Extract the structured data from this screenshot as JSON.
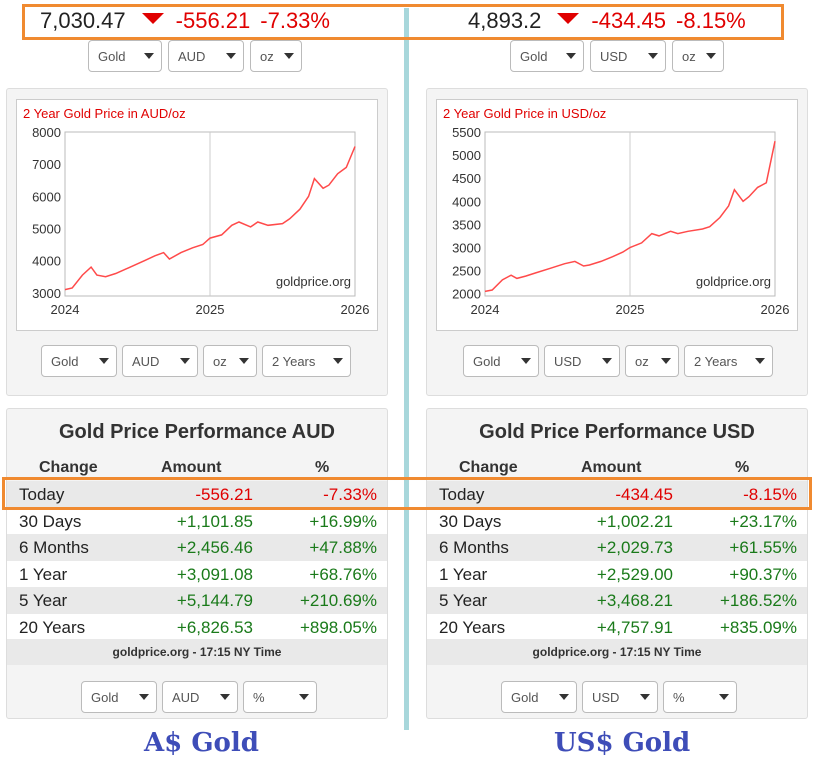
{
  "left": {
    "price": "7,030.47",
    "change": "-556.21",
    "change_pct": "-7.33%",
    "top_selects": [
      "Gold",
      "AUD",
      "oz"
    ],
    "chart": {
      "title": "2 Year Gold Price in AUD/oz",
      "watermark": "goldprice.org"
    },
    "chart_selects": [
      "Gold",
      "AUD",
      "oz",
      "2 Years"
    ],
    "perf_title": "Gold Price Performance AUD",
    "headers": {
      "change": "Change",
      "amount": "Amount",
      "pct": "%"
    },
    "rows": [
      {
        "label": "Today",
        "amount": "-556.21",
        "pct": "-7.33%"
      },
      {
        "label": "30 Days",
        "amount": "+1,101.85",
        "pct": "+16.99%"
      },
      {
        "label": "6 Months",
        "amount": "+2,456.46",
        "pct": "+47.88%"
      },
      {
        "label": "1 Year",
        "amount": "+3,091.08",
        "pct": "+68.76%"
      },
      {
        "label": "5 Year",
        "amount": "+5,144.79",
        "pct": "+210.69%"
      },
      {
        "label": "20 Years",
        "amount": "+6,826.53",
        "pct": "+898.05%"
      }
    ],
    "footer": "goldprice.org - 17:15 NY Time",
    "bottom_selects": [
      "Gold",
      "AUD",
      "%"
    ],
    "caption": "A$ Gold"
  },
  "right": {
    "price": "4,893.2",
    "change": "-434.45",
    "change_pct": "-8.15%",
    "top_selects": [
      "Gold",
      "USD",
      "oz"
    ],
    "chart": {
      "title": "2 Year Gold Price in USD/oz",
      "watermark": "goldprice.org"
    },
    "chart_selects": [
      "Gold",
      "USD",
      "oz",
      "2 Years"
    ],
    "perf_title": "Gold Price Performance USD",
    "headers": {
      "change": "Change",
      "amount": "Amount",
      "pct": "%"
    },
    "rows": [
      {
        "label": "Today",
        "amount": "-434.45",
        "pct": "-8.15%"
      },
      {
        "label": "30 Days",
        "amount": "+1,002.21",
        "pct": "+23.17%"
      },
      {
        "label": "6 Months",
        "amount": "+2,029.73",
        "pct": "+61.55%"
      },
      {
        "label": "1 Year",
        "amount": "+2,529.00",
        "pct": "+90.37%"
      },
      {
        "label": "5 Year",
        "amount": "+3,468.21",
        "pct": "+186.52%"
      },
      {
        "label": "20 Years",
        "amount": "+4,757.91",
        "pct": "+835.09%"
      }
    ],
    "footer": "goldprice.org - 17:15 NY Time",
    "bottom_selects": [
      "Gold",
      "USD",
      "%"
    ],
    "caption": "US$ Gold"
  },
  "colors": {
    "up": "#1a7a1a",
    "down": "#e00000",
    "highlight": "#f08a30",
    "caption": "#3e4db8",
    "divider": "#a8d7db",
    "chart_line": "#ff4a4a"
  },
  "chart_data": [
    {
      "type": "line",
      "title": "2 Year Gold Price in AUD/oz",
      "x_ticks": [
        "2024",
        "2025",
        "2026"
      ],
      "y_ticks": [
        "3000",
        "4000",
        "5000",
        "6000",
        "7000",
        "8000"
      ],
      "ylim": [
        2900,
        8000
      ],
      "xlim": [
        2024.0,
        2026.0
      ],
      "grid": true,
      "series": [
        {
          "x": [
            2024.0,
            2024.05,
            2024.12,
            2024.18,
            2024.22,
            2024.28,
            2024.35,
            2024.45,
            2024.55,
            2024.62,
            2024.68,
            2024.72,
            2024.8,
            2024.88,
            2024.95,
            2025.0,
            2025.08,
            2025.15,
            2025.2,
            2025.28,
            2025.33,
            2025.4,
            2025.5,
            2025.55,
            2025.62,
            2025.68,
            2025.72,
            2025.78,
            2025.82,
            2025.88,
            2025.94,
            2026.0
          ],
          "y": [
            3100,
            3150,
            3550,
            3800,
            3550,
            3500,
            3600,
            3800,
            4000,
            4150,
            4250,
            4050,
            4250,
            4400,
            4500,
            4700,
            4800,
            5100,
            5200,
            5050,
            5200,
            5100,
            5150,
            5300,
            5600,
            6000,
            6550,
            6250,
            6350,
            6700,
            6900,
            7550
          ]
        }
      ]
    },
    {
      "type": "line",
      "title": "2 Year Gold Price in USD/oz",
      "x_ticks": [
        "2024",
        "2025",
        "2026"
      ],
      "y_ticks": [
        "2000",
        "2500",
        "3000",
        "3500",
        "4000",
        "4500",
        "5000",
        "5500"
      ],
      "ylim": [
        1950,
        5500
      ],
      "xlim": [
        2024.0,
        2026.0
      ],
      "grid": true,
      "series": [
        {
          "x": [
            2024.0,
            2024.05,
            2024.12,
            2024.18,
            2024.22,
            2024.28,
            2024.35,
            2024.45,
            2024.55,
            2024.62,
            2024.68,
            2024.72,
            2024.8,
            2024.88,
            2024.95,
            2025.0,
            2025.08,
            2025.15,
            2025.2,
            2025.28,
            2025.33,
            2025.4,
            2025.5,
            2025.55,
            2025.62,
            2025.68,
            2025.72,
            2025.78,
            2025.82,
            2025.88,
            2025.94,
            2026.0
          ],
          "y": [
            2050,
            2080,
            2300,
            2400,
            2330,
            2380,
            2450,
            2550,
            2650,
            2700,
            2600,
            2620,
            2700,
            2800,
            2900,
            3000,
            3100,
            3300,
            3250,
            3350,
            3300,
            3350,
            3400,
            3450,
            3650,
            3900,
            4250,
            4000,
            4100,
            4300,
            4400,
            5300
          ]
        }
      ]
    }
  ]
}
